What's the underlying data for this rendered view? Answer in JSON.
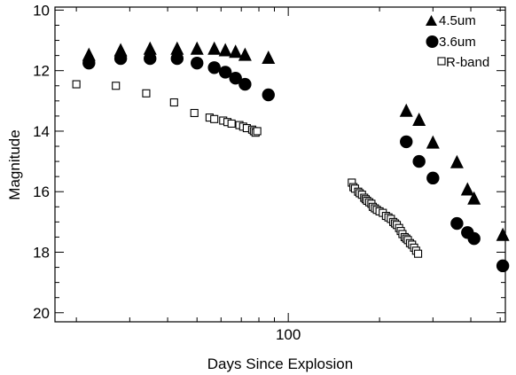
{
  "chart_data": {
    "type": "scatter",
    "xlabel": "Days Since Explosion",
    "ylabel": "Magnitude",
    "xscale": "log",
    "xlim": [
      17,
      520
    ],
    "ylim": [
      20.3,
      9.9
    ],
    "y_inverted": true,
    "x_ticks": [
      100
    ],
    "x_tick_labels": [
      "100"
    ],
    "y_ticks": [
      10,
      12,
      14,
      16,
      18,
      20
    ],
    "y_tick_labels": [
      "10",
      "12",
      "14",
      "16",
      "18",
      "20"
    ],
    "grid": false,
    "legend_position": "top-right",
    "series": [
      {
        "name": "4.5um",
        "marker": "triangle-filled",
        "color": "#000000",
        "x": [
          22,
          28,
          35,
          43,
          50,
          57,
          62,
          67,
          72,
          86,
          245,
          270,
          300,
          360,
          390,
          410,
          510
        ],
        "y": [
          11.5,
          11.35,
          11.3,
          11.3,
          11.3,
          11.3,
          11.35,
          11.4,
          11.5,
          11.6,
          13.35,
          13.65,
          14.4,
          15.05,
          15.95,
          16.25,
          17.45
        ]
      },
      {
        "name": "3.6um",
        "marker": "circle-filled",
        "color": "#000000",
        "x": [
          22,
          28,
          35,
          43,
          50,
          57,
          62,
          67,
          72,
          86,
          245,
          270,
          300,
          360,
          390,
          410,
          510
        ],
        "y": [
          11.75,
          11.6,
          11.6,
          11.6,
          11.75,
          11.9,
          12.05,
          12.25,
          12.45,
          12.8,
          14.35,
          15.0,
          15.55,
          17.05,
          17.35,
          17.55,
          18.45
        ]
      },
      {
        "name": "R-band",
        "marker": "square-open",
        "color": "#000000",
        "x": [
          20,
          27,
          34,
          42,
          49,
          55,
          57,
          61,
          63,
          65,
          69,
          71,
          73,
          76,
          77,
          78,
          79,
          162,
          164,
          166,
          170,
          172,
          175,
          178,
          180,
          182,
          185,
          188,
          190,
          193,
          196,
          200,
          205,
          210,
          214,
          218,
          222,
          225,
          228,
          232,
          235,
          238,
          242,
          245,
          248,
          252,
          256,
          260,
          264,
          268
        ],
        "y": [
          12.45,
          12.5,
          12.75,
          13.05,
          13.4,
          13.55,
          13.6,
          13.65,
          13.7,
          13.75,
          13.8,
          13.85,
          13.9,
          13.95,
          14.0,
          14.05,
          14.0,
          15.7,
          15.85,
          15.9,
          16.0,
          16.05,
          16.1,
          16.2,
          16.25,
          16.3,
          16.35,
          16.4,
          16.5,
          16.55,
          16.6,
          16.65,
          16.7,
          16.8,
          16.85,
          16.9,
          17.0,
          17.05,
          17.1,
          17.2,
          17.3,
          17.4,
          17.5,
          17.55,
          17.6,
          17.7,
          17.75,
          17.85,
          17.95,
          18.05
        ]
      }
    ]
  }
}
